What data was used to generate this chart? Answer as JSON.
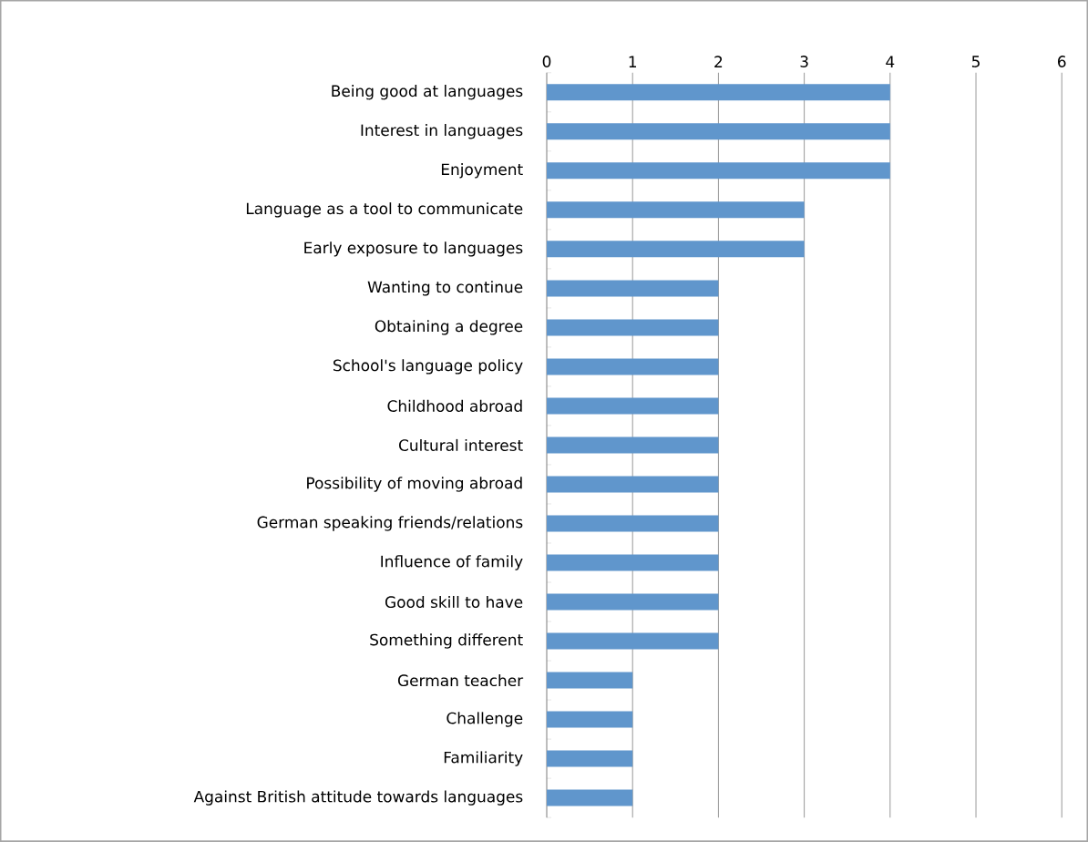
{
  "chart_data": {
    "type": "bar",
    "orientation": "horizontal",
    "categories": [
      "Being good at languages",
      "Interest in languages",
      "Enjoyment",
      "Language as a tool to communicate",
      "Early exposure to languages",
      "Wanting to continue",
      "Obtaining a degree",
      "School's language policy",
      "Childhood abroad",
      "Cultural interest",
      "Possibility of moving abroad",
      "German speaking friends/relations",
      "Influence of family",
      "Good skill to have",
      "Something different",
      "German teacher",
      "Challenge",
      "Familiarity",
      "Against British attitude towards languages"
    ],
    "values": [
      4,
      4,
      4,
      3,
      3,
      2,
      2,
      2,
      2,
      2,
      2,
      2,
      2,
      2,
      2,
      1,
      1,
      1,
      1
    ],
    "color": "#6096cc",
    "xlim": [
      0,
      6
    ],
    "xticks": [
      0,
      1,
      2,
      3,
      4,
      5,
      6
    ],
    "grid": "x"
  }
}
